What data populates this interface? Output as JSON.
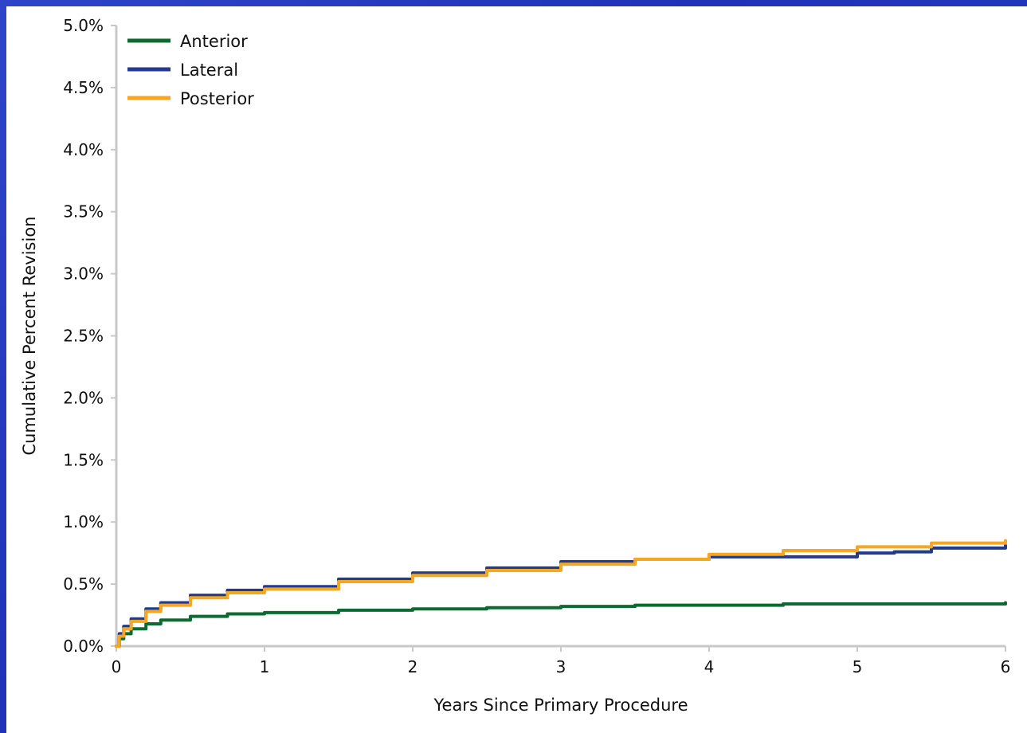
{
  "chart_data": {
    "type": "line",
    "title": "",
    "xlabel": "Years Since Primary Procedure",
    "ylabel": "Cumulative Percent Revision",
    "xlim": [
      0,
      6
    ],
    "ylim": [
      0,
      5.0
    ],
    "xticks": [
      0,
      1,
      2,
      3,
      4,
      5,
      6
    ],
    "xtick_labels": [
      "0",
      "1",
      "2",
      "3",
      "4",
      "5",
      "6"
    ],
    "yticks": [
      0,
      0.5,
      1.0,
      1.5,
      2.0,
      2.5,
      3.0,
      3.5,
      4.0,
      4.5,
      5.0
    ],
    "ytick_labels": [
      "0.0%",
      "0.5%",
      "1.0%",
      "1.5%",
      "2.0%",
      "2.5%",
      "3.0%",
      "3.5%",
      "4.0%",
      "4.5%",
      "5.0%"
    ],
    "grid": false,
    "legend_position": "top-left",
    "series": [
      {
        "name": "Anterior",
        "color": "#0d6b32",
        "x": [
          0,
          0.02,
          0.05,
          0.1,
          0.2,
          0.3,
          0.5,
          0.75,
          1.0,
          1.5,
          2.0,
          2.5,
          3.0,
          3.5,
          4.0,
          4.5,
          5.0,
          5.5,
          6.0
        ],
        "y": [
          0,
          0.06,
          0.1,
          0.14,
          0.18,
          0.21,
          0.24,
          0.26,
          0.27,
          0.29,
          0.3,
          0.31,
          0.32,
          0.33,
          0.33,
          0.34,
          0.34,
          0.34,
          0.35
        ]
      },
      {
        "name": "Lateral",
        "color": "#233a8e",
        "x": [
          0,
          0.02,
          0.05,
          0.1,
          0.2,
          0.3,
          0.5,
          0.75,
          1.0,
          1.5,
          2.0,
          2.5,
          3.0,
          3.5,
          4.0,
          4.5,
          5.0,
          5.25,
          5.5,
          6.0
        ],
        "y": [
          0,
          0.1,
          0.16,
          0.22,
          0.3,
          0.35,
          0.41,
          0.45,
          0.48,
          0.54,
          0.59,
          0.63,
          0.68,
          0.7,
          0.72,
          0.72,
          0.75,
          0.76,
          0.79,
          0.81
        ]
      },
      {
        "name": "Posterior",
        "color": "#f5a623",
        "x": [
          0,
          0.02,
          0.05,
          0.1,
          0.2,
          0.3,
          0.5,
          0.75,
          1.0,
          1.5,
          2.0,
          2.5,
          3.0,
          3.5,
          4.0,
          4.5,
          5.0,
          5.5,
          6.0
        ],
        "y": [
          0,
          0.08,
          0.14,
          0.2,
          0.28,
          0.33,
          0.39,
          0.43,
          0.46,
          0.52,
          0.57,
          0.61,
          0.66,
          0.7,
          0.74,
          0.77,
          0.8,
          0.83,
          0.85
        ]
      }
    ]
  }
}
